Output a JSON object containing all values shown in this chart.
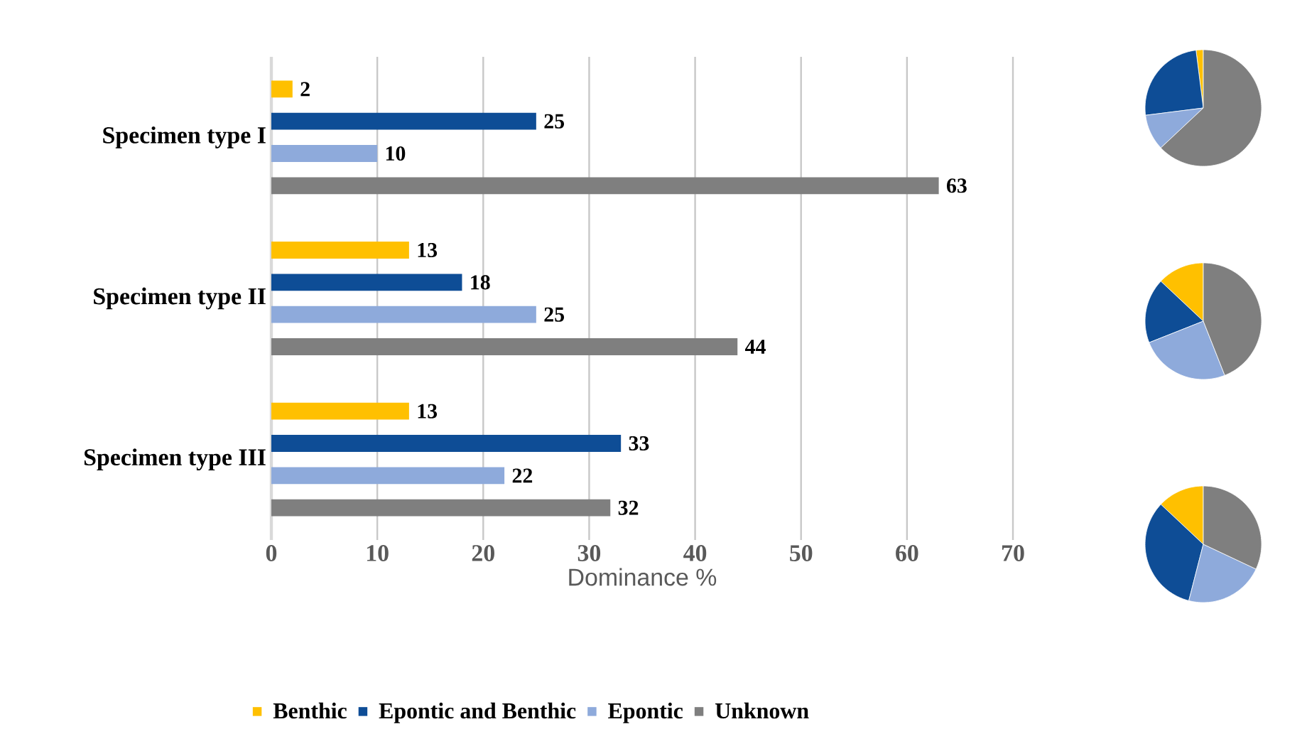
{
  "chart_data": [
    {
      "type": "bar",
      "orientation": "horizontal",
      "xlabel": "Dominance %",
      "categories": [
        "Specimen type I",
        "Specimen type II",
        "Specimen type III"
      ],
      "series": [
        {
          "name": "Benthic",
          "color": "#ffc000",
          "values": [
            2,
            13,
            13
          ]
        },
        {
          "name": "Epontic and Benthic",
          "color": "#0e4d96",
          "values": [
            25,
            18,
            33
          ]
        },
        {
          "name": "Epontic",
          "color": "#8eaadb",
          "values": [
            10,
            25,
            22
          ]
        },
        {
          "name": "Unknown",
          "color": "#7f7f7f",
          "values": [
            63,
            44,
            32
          ]
        }
      ],
      "xlim": [
        0,
        70
      ],
      "xticks": [
        0,
        10,
        20,
        30,
        40,
        50,
        60,
        70
      ],
      "grid": "x",
      "legend": "bottom",
      "data_labels": true
    },
    {
      "type": "pie",
      "categories": [
        null,
        null,
        null,
        null
      ],
      "values": [
        2,
        25,
        10,
        63
      ],
      "colors": [
        "#ffc000",
        "#0e4d96",
        "#8eaadb",
        "#7f7f7f"
      ]
    },
    {
      "type": "pie",
      "categories": [
        null,
        null,
        null,
        null
      ],
      "values": [
        13,
        18,
        25,
        44
      ],
      "colors": [
        "#ffc000",
        "#0e4d96",
        "#8eaadb",
        "#7f7f7f"
      ]
    },
    {
      "type": "pie",
      "categories": [
        null,
        null,
        null,
        null
      ],
      "values": [
        13,
        33,
        22,
        32
      ],
      "colors": [
        "#ffc000",
        "#0e4d96",
        "#8eaadb",
        "#7f7f7f"
      ]
    }
  ]
}
